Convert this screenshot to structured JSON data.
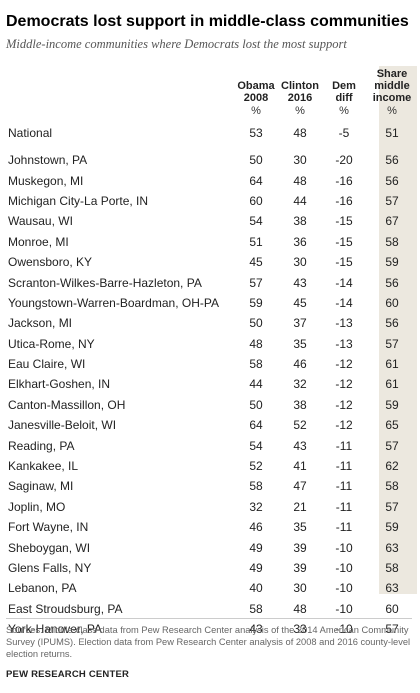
{
  "title": "Democrats lost support in middle-class communities",
  "subtitle": "Middle-income communities where Democrats lost the most support",
  "chart_data": {
    "type": "table",
    "columns": [
      {
        "key": "obama_2008",
        "label": [
          "Obama",
          "2008"
        ],
        "unit": "%"
      },
      {
        "key": "clinton_2016",
        "label": [
          "Clinton",
          "2016"
        ],
        "unit": "%"
      },
      {
        "key": "dem_diff",
        "label": [
          "Dem",
          "diff"
        ],
        "unit": "%"
      },
      {
        "key": "share_middle_income",
        "label": [
          "Share",
          "middle",
          "income"
        ],
        "unit": "%"
      }
    ],
    "national": {
      "name": "National",
      "values": [
        "53",
        "48",
        "-5",
        "51"
      ]
    },
    "rows": [
      {
        "name": "Johnstown, PA",
        "values": [
          "50",
          "30",
          "-20",
          "56"
        ]
      },
      {
        "name": "Muskegon, MI",
        "values": [
          "64",
          "48",
          "-16",
          "56"
        ]
      },
      {
        "name": "Michigan City-La Porte, IN",
        "values": [
          "60",
          "44",
          "-16",
          "57"
        ]
      },
      {
        "name": "Wausau, WI",
        "values": [
          "54",
          "38",
          "-15",
          "67"
        ]
      },
      {
        "name": "Monroe, MI",
        "values": [
          "51",
          "36",
          "-15",
          "58"
        ]
      },
      {
        "name": "Owensboro, KY",
        "values": [
          "45",
          "30",
          "-15",
          "59"
        ]
      },
      {
        "name": "Scranton-Wilkes-Barre-Hazleton,  PA",
        "values": [
          "57",
          "43",
          "-14",
          "56"
        ]
      },
      {
        "name": "Youngstown-Warren-Boardman, OH-PA",
        "values": [
          "59",
          "45",
          "-14",
          "60"
        ]
      },
      {
        "name": "Jackson, MI",
        "values": [
          "50",
          "37",
          "-13",
          "56"
        ]
      },
      {
        "name": "Utica-Rome, NY",
        "values": [
          "48",
          "35",
          "-13",
          "57"
        ]
      },
      {
        "name": "Eau Claire, WI",
        "values": [
          "58",
          "46",
          "-12",
          "61"
        ]
      },
      {
        "name": "Elkhart-Goshen,  IN",
        "values": [
          "44",
          "32",
          "-12",
          "61"
        ]
      },
      {
        "name": "Canton-Massillon, OH",
        "values": [
          "50",
          "38",
          "-12",
          "59"
        ]
      },
      {
        "name": "Janesville-Beloit, WI",
        "values": [
          "64",
          "52",
          "-12",
          "65"
        ]
      },
      {
        "name": "Reading, PA",
        "values": [
          "54",
          "43",
          "-11",
          "57"
        ]
      },
      {
        "name": "Kankakee, IL",
        "values": [
          "52",
          "41",
          "-11",
          "62"
        ]
      },
      {
        "name": "Saginaw, MI",
        "values": [
          "58",
          "47",
          "-11",
          "58"
        ]
      },
      {
        "name": "Joplin, MO",
        "values": [
          "32",
          "21",
          "-11",
          "57"
        ]
      },
      {
        "name": "Fort Wayne, IN",
        "values": [
          "46",
          "35",
          "-11",
          "59"
        ]
      },
      {
        "name": "Sheboygan, WI",
        "values": [
          "49",
          "39",
          "-10",
          "63"
        ]
      },
      {
        "name": "Glens Falls, NY",
        "values": [
          "49",
          "39",
          "-10",
          "58"
        ]
      },
      {
        "name": "Lebanon, PA",
        "values": [
          "40",
          "30",
          "-10",
          "63"
        ]
      },
      {
        "name": "East Stroudsburg,  PA",
        "values": [
          "58",
          "48",
          "-10",
          "60"
        ]
      },
      {
        "name": "York-Hanover, PA",
        "values": [
          "43",
          "33",
          "-10",
          "57"
        ]
      }
    ],
    "shaded_column": "share_middle_income",
    "shade_color": "#ece8df"
  },
  "sources": "Sources: Middle-class data from Pew Research Center analysis of the 2014 American Community Survey (IPUMS). Election data from Pew Research Center analysis of 2008 and 2016 county-level election returns.",
  "brand": "PEW RESEARCH CENTER"
}
